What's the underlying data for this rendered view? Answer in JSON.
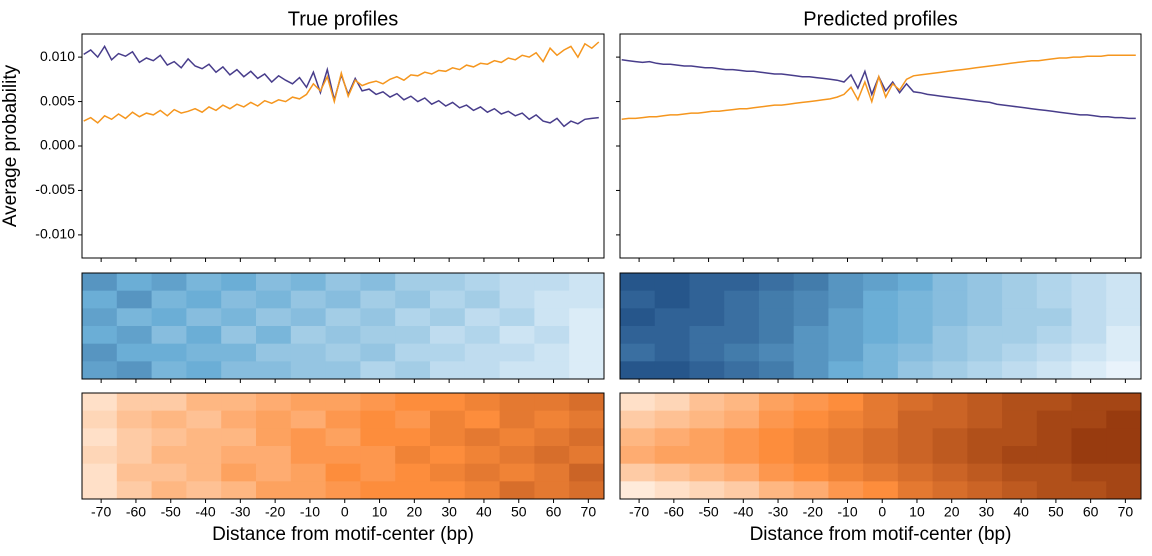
{
  "chart_data": [
    {
      "type": "line",
      "title": "True profiles",
      "ylabel": "Average probability",
      "x": [
        -75,
        -73,
        -71,
        -69,
        -67,
        -65,
        -63,
        -61,
        -59,
        -57,
        -55,
        -53,
        -51,
        -49,
        -47,
        -45,
        -43,
        -41,
        -39,
        -37,
        -35,
        -33,
        -31,
        -29,
        -27,
        -25,
        -23,
        -21,
        -19,
        -17,
        -15,
        -13,
        -11,
        -9,
        -7,
        -5,
        -3,
        -1,
        1,
        3,
        5,
        7,
        9,
        11,
        13,
        15,
        17,
        19,
        21,
        23,
        25,
        27,
        29,
        31,
        33,
        35,
        37,
        39,
        41,
        43,
        45,
        47,
        49,
        51,
        53,
        55,
        57,
        59,
        61,
        63,
        65,
        67,
        69,
        71,
        73
      ],
      "series": [
        {
          "color": "#483d8b",
          "values": [
            0.0103,
            0.0108,
            0.01,
            0.0112,
            0.0097,
            0.0104,
            0.0101,
            0.0106,
            0.0094,
            0.0099,
            0.0096,
            0.0102,
            0.0091,
            0.0095,
            0.0088,
            0.0098,
            0.009,
            0.0087,
            0.0092,
            0.0083,
            0.0089,
            0.008,
            0.0086,
            0.0078,
            0.0084,
            0.0076,
            0.0081,
            0.0072,
            0.0079,
            0.0074,
            0.007,
            0.0077,
            0.0066,
            0.0083,
            0.006,
            0.0086,
            0.0052,
            0.008,
            0.0058,
            0.0076,
            0.0062,
            0.0064,
            0.0058,
            0.0061,
            0.0055,
            0.0059,
            0.0052,
            0.0056,
            0.005,
            0.0054,
            0.0047,
            0.0051,
            0.0045,
            0.0049,
            0.0043,
            0.0046,
            0.004,
            0.0044,
            0.0038,
            0.0042,
            0.0036,
            0.0039,
            0.0034,
            0.0037,
            0.003,
            0.0035,
            0.0028,
            0.0026,
            0.0031,
            0.0022,
            0.0028,
            0.0025,
            0.003,
            0.0031,
            0.0032
          ]
        },
        {
          "color": "#f5961e",
          "values": [
            0.0028,
            0.0032,
            0.0026,
            0.0034,
            0.003,
            0.0036,
            0.0031,
            0.0038,
            0.0033,
            0.0037,
            0.0035,
            0.004,
            0.0034,
            0.0041,
            0.0037,
            0.0039,
            0.0042,
            0.0038,
            0.0044,
            0.004,
            0.0046,
            0.0042,
            0.0047,
            0.0044,
            0.0049,
            0.0045,
            0.0051,
            0.0048,
            0.0052,
            0.005,
            0.0055,
            0.0053,
            0.0058,
            0.007,
            0.0062,
            0.0078,
            0.005,
            0.0082,
            0.0056,
            0.0074,
            0.0068,
            0.0071,
            0.0073,
            0.007,
            0.0075,
            0.0078,
            0.0074,
            0.008,
            0.0079,
            0.0083,
            0.0081,
            0.0085,
            0.0084,
            0.0088,
            0.0086,
            0.0091,
            0.0089,
            0.0093,
            0.0092,
            0.0096,
            0.0094,
            0.0099,
            0.0097,
            0.0102,
            0.01,
            0.0105,
            0.0095,
            0.011,
            0.0102,
            0.0108,
            0.0112,
            0.01,
            0.0115,
            0.011,
            0.0117
          ]
        }
      ],
      "xlim": [
        -75.5,
        74.5
      ],
      "xticks": [
        -70,
        -60,
        -50,
        -40,
        -30,
        -20,
        -10,
        0,
        10,
        20,
        30,
        40,
        50,
        60,
        70
      ],
      "xtick_labels": false,
      "ylim": [
        -0.0126,
        0.0126
      ],
      "yticks": [
        {
          "value": -0.01,
          "label": "-0.010"
        },
        -0.005,
        {
          "value": 0,
          "label": "0.000"
        },
        0.005,
        {
          "value": 0.01,
          "label": "0.010"
        }
      ],
      "ytick_labels": true
    },
    {
      "type": "line",
      "title": "Predicted profiles",
      "x": [
        -75,
        -73,
        -71,
        -69,
        -67,
        -65,
        -63,
        -61,
        -59,
        -57,
        -55,
        -53,
        -51,
        -49,
        -47,
        -45,
        -43,
        -41,
        -39,
        -37,
        -35,
        -33,
        -31,
        -29,
        -27,
        -25,
        -23,
        -21,
        -19,
        -17,
        -15,
        -13,
        -11,
        -9,
        -7,
        -5,
        -3,
        -1,
        1,
        3,
        5,
        7,
        9,
        11,
        13,
        15,
        17,
        19,
        21,
        23,
        25,
        27,
        29,
        31,
        33,
        35,
        37,
        39,
        41,
        43,
        45,
        47,
        49,
        51,
        53,
        55,
        57,
        59,
        61,
        63,
        65,
        67,
        69,
        71,
        73
      ],
      "series": [
        {
          "color": "#483d8b",
          "values": [
            0.0097,
            0.0096,
            0.0095,
            0.0094,
            0.0095,
            0.0093,
            0.0092,
            0.0092,
            0.0091,
            0.009,
            0.009,
            0.0089,
            0.0088,
            0.0088,
            0.0087,
            0.0086,
            0.0086,
            0.0085,
            0.0084,
            0.0084,
            0.0083,
            0.0082,
            0.0081,
            0.0081,
            0.008,
            0.0079,
            0.0078,
            0.0078,
            0.0077,
            0.0076,
            0.0075,
            0.0074,
            0.0072,
            0.008,
            0.0065,
            0.0084,
            0.0058,
            0.0078,
            0.0062,
            0.0072,
            0.006,
            0.007,
            0.0061,
            0.006,
            0.0058,
            0.0057,
            0.0056,
            0.0055,
            0.0054,
            0.0053,
            0.0052,
            0.0051,
            0.005,
            0.0049,
            0.0047,
            0.0046,
            0.0045,
            0.0044,
            0.0043,
            0.0042,
            0.0041,
            0.004,
            0.0039,
            0.0038,
            0.0037,
            0.0036,
            0.0035,
            0.0035,
            0.0034,
            0.0033,
            0.0033,
            0.0032,
            0.0032,
            0.0031,
            0.0031
          ]
        },
        {
          "color": "#f5961e",
          "values": [
            0.003,
            0.0031,
            0.0031,
            0.0032,
            0.0033,
            0.0033,
            0.0034,
            0.0035,
            0.0035,
            0.0036,
            0.0037,
            0.0037,
            0.0038,
            0.0039,
            0.0039,
            0.004,
            0.0041,
            0.0042,
            0.0042,
            0.0043,
            0.0044,
            0.0045,
            0.0046,
            0.0046,
            0.0047,
            0.0048,
            0.0049,
            0.005,
            0.0051,
            0.0052,
            0.0053,
            0.0055,
            0.0058,
            0.0066,
            0.0052,
            0.0072,
            0.005,
            0.0078,
            0.0055,
            0.007,
            0.0063,
            0.0075,
            0.0079,
            0.008,
            0.0081,
            0.0082,
            0.0083,
            0.0084,
            0.0085,
            0.0086,
            0.0087,
            0.0088,
            0.0089,
            0.009,
            0.0091,
            0.0092,
            0.0093,
            0.0094,
            0.0095,
            0.0096,
            0.0096,
            0.0097,
            0.0098,
            0.0099,
            0.0099,
            0.01,
            0.01,
            0.0101,
            0.0101,
            0.0101,
            0.0102,
            0.0102,
            0.0102,
            0.0102,
            0.0102
          ]
        }
      ],
      "xlim": [
        -75.5,
        74.5
      ],
      "xticks": [
        -70,
        -60,
        -50,
        -40,
        -30,
        -20,
        -10,
        0,
        10,
        20,
        30,
        40,
        50,
        60,
        70
      ],
      "xtick_labels": false,
      "ylim": [
        -0.0126,
        0.0126
      ],
      "yticks": [
        -0.01,
        -0.005,
        0,
        0.005,
        0.01
      ],
      "ytick_labels": false
    },
    {
      "type": "heatmap",
      "colors": [
        "#f7fbff",
        "#6baed6",
        "#08306b"
      ],
      "xlim": [
        -75.5,
        74.5
      ],
      "xticks": [
        -70,
        -60,
        -50,
        -40,
        -30,
        -20,
        -10,
        0,
        10,
        20,
        30,
        40,
        50,
        60,
        70
      ],
      "xtick_labels": false,
      "matrix": [
        [
          0.6,
          0.5,
          0.55,
          0.45,
          0.5,
          0.4,
          0.45,
          0.35,
          0.4,
          0.3,
          0.3,
          0.25,
          0.2,
          0.2,
          0.15
        ],
        [
          0.5,
          0.6,
          0.45,
          0.5,
          0.4,
          0.45,
          0.35,
          0.4,
          0.3,
          0.35,
          0.25,
          0.3,
          0.2,
          0.15,
          0.15
        ],
        [
          0.55,
          0.45,
          0.5,
          0.4,
          0.45,
          0.35,
          0.4,
          0.3,
          0.35,
          0.25,
          0.3,
          0.2,
          0.25,
          0.15,
          0.1
        ],
        [
          0.5,
          0.55,
          0.4,
          0.5,
          0.35,
          0.45,
          0.3,
          0.35,
          0.3,
          0.3,
          0.2,
          0.25,
          0.15,
          0.2,
          0.1
        ],
        [
          0.6,
          0.5,
          0.5,
          0.45,
          0.45,
          0.35,
          0.35,
          0.3,
          0.35,
          0.25,
          0.25,
          0.2,
          0.2,
          0.15,
          0.1
        ],
        [
          0.55,
          0.6,
          0.45,
          0.5,
          0.4,
          0.4,
          0.35,
          0.35,
          0.25,
          0.3,
          0.2,
          0.2,
          0.15,
          0.15,
          0.1
        ]
      ]
    },
    {
      "type": "heatmap",
      "colors": [
        "#f7fbff",
        "#6baed6",
        "#08306b"
      ],
      "xlim": [
        -75.5,
        74.5
      ],
      "xticks": [
        -70,
        -60,
        -50,
        -40,
        -30,
        -20,
        -10,
        0,
        10,
        20,
        30,
        40,
        50,
        60,
        70
      ],
      "xtick_labels": false,
      "matrix": [
        [
          0.85,
          0.85,
          0.8,
          0.8,
          0.75,
          0.7,
          0.6,
          0.55,
          0.5,
          0.4,
          0.35,
          0.3,
          0.25,
          0.2,
          0.15
        ],
        [
          0.8,
          0.85,
          0.8,
          0.75,
          0.7,
          0.65,
          0.6,
          0.5,
          0.45,
          0.4,
          0.35,
          0.3,
          0.25,
          0.2,
          0.15
        ],
        [
          0.85,
          0.8,
          0.8,
          0.75,
          0.7,
          0.65,
          0.55,
          0.5,
          0.45,
          0.4,
          0.35,
          0.3,
          0.3,
          0.2,
          0.15
        ],
        [
          0.8,
          0.8,
          0.75,
          0.75,
          0.7,
          0.6,
          0.55,
          0.5,
          0.45,
          0.35,
          0.3,
          0.3,
          0.25,
          0.2,
          0.1
        ],
        [
          0.75,
          0.8,
          0.75,
          0.7,
          0.65,
          0.6,
          0.55,
          0.45,
          0.4,
          0.35,
          0.3,
          0.25,
          0.2,
          0.15,
          0.1
        ],
        [
          0.85,
          0.85,
          0.8,
          0.75,
          0.7,
          0.6,
          0.5,
          0.45,
          0.35,
          0.3,
          0.25,
          0.2,
          0.15,
          0.1,
          0.05
        ]
      ]
    },
    {
      "type": "heatmap",
      "colors": [
        "#fff5eb",
        "#fd8d3c",
        "#7f2704"
      ],
      "xlim": [
        -75.5,
        74.5
      ],
      "xticks": [
        -70,
        -60,
        -50,
        -40,
        -30,
        -20,
        -10,
        0,
        10,
        20,
        30,
        40,
        50,
        60,
        70
      ],
      "xtick_labels": true,
      "xlabel": "Distance from motif-center (bp)",
      "matrix": [
        [
          0.1,
          0.2,
          0.2,
          0.3,
          0.3,
          0.35,
          0.4,
          0.4,
          0.45,
          0.5,
          0.5,
          0.55,
          0.6,
          0.6,
          0.65
        ],
        [
          0.15,
          0.25,
          0.3,
          0.25,
          0.35,
          0.4,
          0.35,
          0.45,
          0.5,
          0.45,
          0.55,
          0.5,
          0.6,
          0.55,
          0.6
        ],
        [
          0.1,
          0.2,
          0.25,
          0.3,
          0.3,
          0.4,
          0.45,
          0.4,
          0.5,
          0.5,
          0.55,
          0.6,
          0.55,
          0.6,
          0.65
        ],
        [
          0.15,
          0.2,
          0.3,
          0.3,
          0.35,
          0.35,
          0.45,
          0.45,
          0.45,
          0.55,
          0.5,
          0.55,
          0.6,
          0.65,
          0.6
        ],
        [
          0.1,
          0.25,
          0.25,
          0.3,
          0.4,
          0.35,
          0.4,
          0.5,
          0.45,
          0.5,
          0.55,
          0.6,
          0.55,
          0.6,
          0.7
        ],
        [
          0.1,
          0.2,
          0.3,
          0.25,
          0.3,
          0.4,
          0.4,
          0.45,
          0.5,
          0.5,
          0.5,
          0.55,
          0.65,
          0.6,
          0.65
        ]
      ]
    },
    {
      "type": "heatmap",
      "colors": [
        "#fff5eb",
        "#fd8d3c",
        "#7f2704"
      ],
      "xlim": [
        -75.5,
        74.5
      ],
      "xticks": [
        -70,
        -60,
        -50,
        -40,
        -30,
        -20,
        -10,
        0,
        10,
        20,
        30,
        40,
        50,
        60,
        70
      ],
      "xtick_labels": true,
      "xlabel": "Distance from motif-center (bp)",
      "matrix": [
        [
          0.1,
          0.15,
          0.25,
          0.3,
          0.4,
          0.45,
          0.5,
          0.6,
          0.65,
          0.7,
          0.75,
          0.8,
          0.8,
          0.85,
          0.85
        ],
        [
          0.2,
          0.25,
          0.3,
          0.35,
          0.45,
          0.5,
          0.55,
          0.6,
          0.7,
          0.7,
          0.75,
          0.8,
          0.85,
          0.85,
          0.9
        ],
        [
          0.3,
          0.35,
          0.4,
          0.45,
          0.5,
          0.55,
          0.6,
          0.65,
          0.7,
          0.75,
          0.8,
          0.8,
          0.85,
          0.9,
          0.9
        ],
        [
          0.35,
          0.4,
          0.4,
          0.45,
          0.5,
          0.55,
          0.6,
          0.65,
          0.7,
          0.75,
          0.8,
          0.85,
          0.85,
          0.9,
          0.9
        ],
        [
          0.2,
          0.25,
          0.3,
          0.35,
          0.45,
          0.5,
          0.55,
          0.6,
          0.65,
          0.7,
          0.75,
          0.8,
          0.8,
          0.85,
          0.85
        ],
        [
          0.05,
          0.1,
          0.15,
          0.2,
          0.3,
          0.35,
          0.45,
          0.5,
          0.6,
          0.65,
          0.7,
          0.75,
          0.8,
          0.8,
          0.85
        ]
      ]
    }
  ]
}
